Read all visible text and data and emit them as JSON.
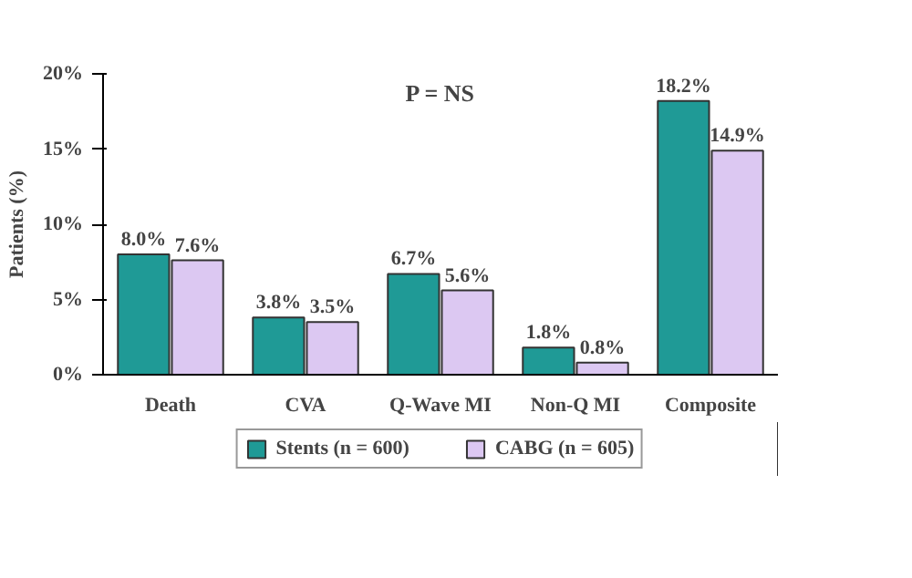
{
  "chart_data": {
    "type": "bar",
    "ylabel": "Patients (%)",
    "categories": [
      "Death",
      "CVA",
      "Q-Wave MI",
      "Non-Q MI",
      "Composite"
    ],
    "series": [
      {
        "name": "Stents (n = 600)",
        "color": "#1f9a96",
        "values": [
          8.0,
          3.8,
          6.7,
          1.8,
          18.2
        ],
        "value_labels": [
          "8.0%",
          "3.8%",
          "6.7%",
          "1.8%",
          "18.2%"
        ]
      },
      {
        "name": "CABG (n = 605)",
        "color": "#dcc8f2",
        "values": [
          7.6,
          3.5,
          5.6,
          0.8,
          14.9
        ],
        "value_labels": [
          "7.6%",
          "3.5%",
          "5.6%",
          "0.8%",
          "14.9%"
        ]
      }
    ],
    "ylim": [
      0,
      20
    ],
    "yticks": [
      {
        "value": 0,
        "label": "0%"
      },
      {
        "value": 5,
        "label": "5%"
      },
      {
        "value": 10,
        "label": "10%"
      },
      {
        "value": 15,
        "label": "15%"
      },
      {
        "value": 20,
        "label": "20%"
      }
    ],
    "annotations": [
      "P = NS"
    ],
    "grid": false,
    "legend": "bottom"
  }
}
